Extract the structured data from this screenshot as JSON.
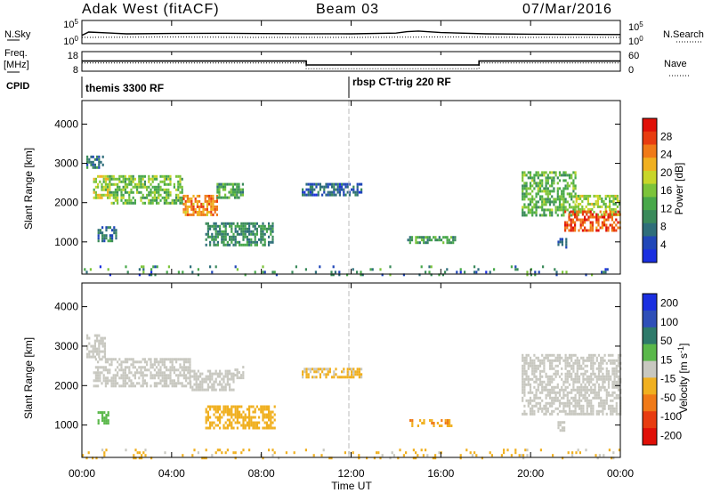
{
  "header": {
    "title": "Adak West (fitACF)",
    "beam": "Beam 03",
    "date": "07/Mar/2016"
  },
  "noise_panel": {
    "left_label": "N.Sky",
    "left_ticks": [
      "10^5",
      "10^0"
    ],
    "right_label": "N.Search",
    "right_ticks": [
      "10^5",
      "10^0"
    ]
  },
  "freq_panel": {
    "left_label_line1": "Freq.",
    "left_label_line2": "[MHz]",
    "left_ticks": [
      "18",
      "8"
    ],
    "right_label": "Nave",
    "right_ticks": [
      "60",
      "0"
    ]
  },
  "cpid": {
    "label": "CPID",
    "modes": [
      "themis 3300 RF",
      "rbsp CT-trig 220 RF"
    ]
  },
  "x_axis": {
    "label": "Time UT",
    "ticks": [
      "00:00",
      "04:00",
      "08:00",
      "12:00",
      "16:00",
      "20:00",
      "00:00"
    ]
  },
  "colors": {
    "power_scale": [
      "#1a2fe0",
      "#2047b8",
      "#2e6e7a",
      "#3a8a5a",
      "#48a84a",
      "#7cc43a",
      "#c8d62a",
      "#f0b020",
      "#f07a18",
      "#e83c10",
      "#e01008"
    ],
    "velocity_scale": [
      "#1a2fe0",
      "#2e4fb8",
      "#2e7a6a",
      "#5ab84a",
      "#c8c8c0",
      "#f0b020",
      "#f07a18",
      "#e83c10",
      "#e01008"
    ]
  },
  "chart_data": [
    {
      "type": "line",
      "title": "N.Sky / N.Search",
      "xlabel": "Time UT",
      "xlim": [
        0,
        24
      ],
      "yscale": "log",
      "ylim": [
        1,
        100000
      ],
      "series": [
        {
          "name": "N.Sky",
          "x": [
            0,
            0.3,
            2,
            4,
            6,
            8,
            10,
            12,
            14,
            14.5,
            15,
            16,
            18,
            20,
            22,
            24
          ],
          "y": [
            60,
            400,
            150,
            180,
            200,
            170,
            160,
            150,
            220,
            500,
            700,
            300,
            150,
            120,
            110,
            100
          ]
        },
        {
          "name": "N.Search",
          "x": [
            0,
            4,
            8,
            12,
            16,
            20,
            24
          ],
          "y": [
            20,
            25,
            20,
            20,
            25,
            20,
            20
          ]
        }
      ]
    },
    {
      "type": "line",
      "title": "Freq. / Nave",
      "xlabel": "Time UT",
      "xlim": [
        0,
        24
      ],
      "ylim": [
        8,
        18
      ],
      "series": [
        {
          "name": "Freq.",
          "x": [
            0,
            10,
            10,
            17.7,
            17.7,
            24
          ],
          "y": [
            13.2,
            13.2,
            11,
            11,
            13.2,
            13.2
          ]
        },
        {
          "name": "Nave",
          "x": [
            0,
            10,
            10,
            17.7,
            17.7,
            24
          ],
          "y": [
            25,
            25,
            5,
            5,
            25,
            25
          ]
        }
      ]
    },
    {
      "type": "heatmap",
      "title": "Power",
      "xlabel": "Time UT",
      "ylabel": "Slant Range [km]",
      "xlim": [
        0,
        24
      ],
      "ylim": [
        180,
        4600
      ],
      "yticks": [
        1000,
        2000,
        3000,
        4000
      ],
      "colorbar": {
        "label": "Power [dB]",
        "ticks": [
          4,
          8,
          12,
          16,
          20,
          24,
          28
        ],
        "range": [
          0,
          32
        ]
      },
      "regions": [
        {
          "t": [
            0.2,
            0.9
          ],
          "r": [
            2900,
            3200
          ],
          "value": 8
        },
        {
          "t": [
            0.5,
            1.2
          ],
          "r": [
            2100,
            2700
          ],
          "value": 18
        },
        {
          "t": [
            1.2,
            4.5
          ],
          "r": [
            2000,
            2700
          ],
          "value": 15
        },
        {
          "t": [
            4.5,
            6.0
          ],
          "r": [
            1700,
            2200
          ],
          "value": 24
        },
        {
          "t": [
            6.0,
            7.2
          ],
          "r": [
            2100,
            2500
          ],
          "value": 12
        },
        {
          "t": [
            0.7,
            1.5
          ],
          "r": [
            1000,
            1400
          ],
          "value": 8
        },
        {
          "t": [
            5.5,
            8.5
          ],
          "r": [
            900,
            1500
          ],
          "value": 10
        },
        {
          "t": [
            9.8,
            12.5
          ],
          "r": [
            2200,
            2500
          ],
          "value": 6
        },
        {
          "t": [
            14.5,
            16.6
          ],
          "r": [
            950,
            1150
          ],
          "value": 12
        },
        {
          "t": [
            19.6,
            22.0
          ],
          "r": [
            1700,
            2800
          ],
          "value": 14
        },
        {
          "t": [
            22.0,
            24.0
          ],
          "r": [
            1700,
            2200
          ],
          "value": 17
        },
        {
          "t": [
            21.5,
            24.0
          ],
          "r": [
            1300,
            1800
          ],
          "value": 27
        },
        {
          "t": [
            21.2,
            21.6
          ],
          "r": [
            850,
            1100
          ],
          "value": 8
        },
        {
          "t": [
            0.0,
            24.0
          ],
          "r": [
            180,
            400
          ],
          "value": 8
        }
      ]
    },
    {
      "type": "heatmap",
      "title": "Velocity",
      "xlabel": "Time UT",
      "ylabel": "Slant Range [km]",
      "xlim": [
        0,
        24
      ],
      "ylim": [
        180,
        4600
      ],
      "yticks": [
        1000,
        2000,
        3000,
        4000
      ],
      "colorbar": {
        "label": "Velocity [m s^-1]",
        "ticks": [
          200,
          100,
          50,
          15,
          -15,
          -50,
          -100,
          -200
        ],
        "range": [
          -250,
          250
        ]
      },
      "regions": [
        {
          "t": [
            0.2,
            1.0
          ],
          "r": [
            2700,
            3300
          ],
          "value": 0
        },
        {
          "t": [
            0.5,
            4.8
          ],
          "r": [
            2000,
            2700
          ],
          "value": 0
        },
        {
          "t": [
            4.8,
            6.8
          ],
          "r": [
            1900,
            2400
          ],
          "value": 0
        },
        {
          "t": [
            6.8,
            7.2
          ],
          "r": [
            2200,
            2500
          ],
          "value": 0
        },
        {
          "t": [
            0.7,
            1.2
          ],
          "r": [
            1050,
            1350
          ],
          "value": 60
        },
        {
          "t": [
            5.5,
            8.6
          ],
          "r": [
            900,
            1500
          ],
          "value": -60
        },
        {
          "t": [
            9.8,
            12.5
          ],
          "r": [
            2200,
            2450
          ],
          "value": -40
        },
        {
          "t": [
            14.6,
            16.5
          ],
          "r": [
            950,
            1150
          ],
          "value": -70
        },
        {
          "t": [
            19.6,
            24.0
          ],
          "r": [
            1300,
            2800
          ],
          "value": 0
        },
        {
          "t": [
            21.2,
            21.5
          ],
          "r": [
            850,
            1100
          ],
          "value": 0
        },
        {
          "t": [
            0.0,
            24.0
          ],
          "r": [
            180,
            400
          ],
          "value": -40
        }
      ]
    }
  ]
}
